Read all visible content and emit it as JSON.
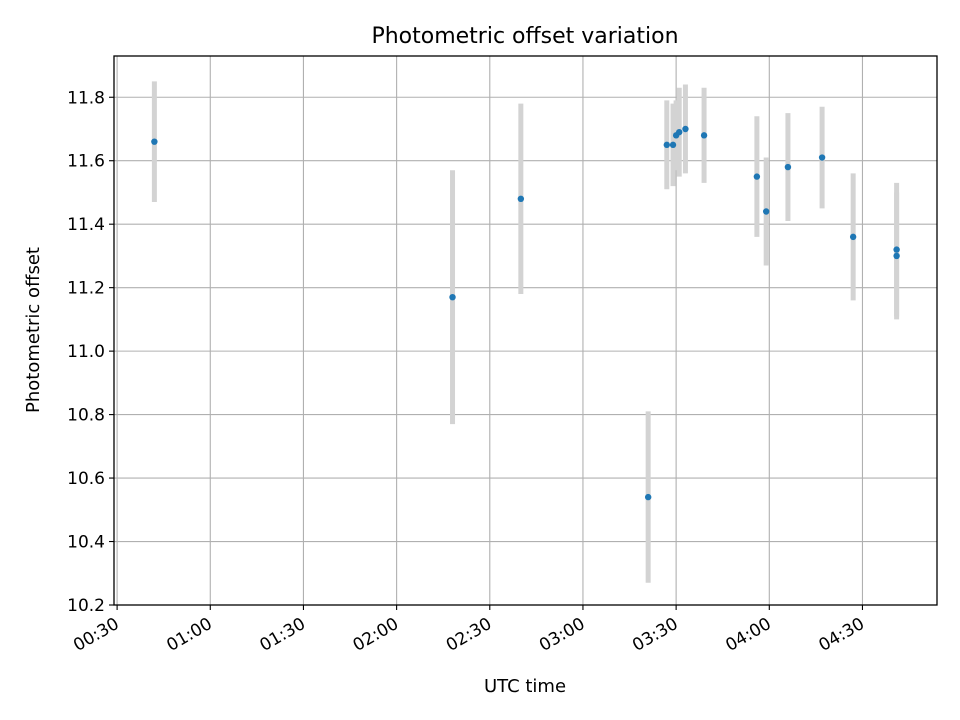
{
  "chart_data": {
    "type": "scatter",
    "title": "Photometric offset variation",
    "xlabel": "UTC time",
    "ylabel": "Photometric offset",
    "xlim": [
      "00:29",
      "04:54"
    ],
    "ylim": [
      10.2,
      11.93
    ],
    "x_ticks": [
      "00:30",
      "01:00",
      "01:30",
      "02:00",
      "02:30",
      "03:00",
      "03:30",
      "04:00",
      "04:30"
    ],
    "y_ticks": [
      10.2,
      10.4,
      10.6,
      10.8,
      11.0,
      11.2,
      11.4,
      11.6,
      11.8
    ],
    "grid": true,
    "colors": {
      "point": "#1f77b4",
      "errorbar": "#d3d3d3",
      "grid": "#b0b0b0"
    },
    "points": [
      {
        "x": "00:42",
        "y": 11.66,
        "err": 0.19
      },
      {
        "x": "02:18",
        "y": 11.17,
        "err": 0.4
      },
      {
        "x": "02:40",
        "y": 11.48,
        "err": 0.3
      },
      {
        "x": "03:21",
        "y": 10.54,
        "err": 0.27
      },
      {
        "x": "03:27",
        "y": 11.65,
        "err": 0.14
      },
      {
        "x": "03:29",
        "y": 11.65,
        "err": 0.13
      },
      {
        "x": "03:30",
        "y": 11.68,
        "err": 0.11
      },
      {
        "x": "03:31",
        "y": 11.69,
        "err": 0.14
      },
      {
        "x": "03:33",
        "y": 11.7,
        "err": 0.14
      },
      {
        "x": "03:39",
        "y": 11.68,
        "err": 0.15
      },
      {
        "x": "03:56",
        "y": 11.55,
        "err": 0.19
      },
      {
        "x": "03:59",
        "y": 11.44,
        "err": 0.17
      },
      {
        "x": "04:06",
        "y": 11.58,
        "err": 0.17
      },
      {
        "x": "04:17",
        "y": 11.61,
        "err": 0.16
      },
      {
        "x": "04:27",
        "y": 11.36,
        "err": 0.2
      },
      {
        "x": "04:41",
        "y": 11.3,
        "err": 0.2
      },
      {
        "x": "04:41",
        "y": 11.32,
        "err": 0.21
      }
    ]
  }
}
